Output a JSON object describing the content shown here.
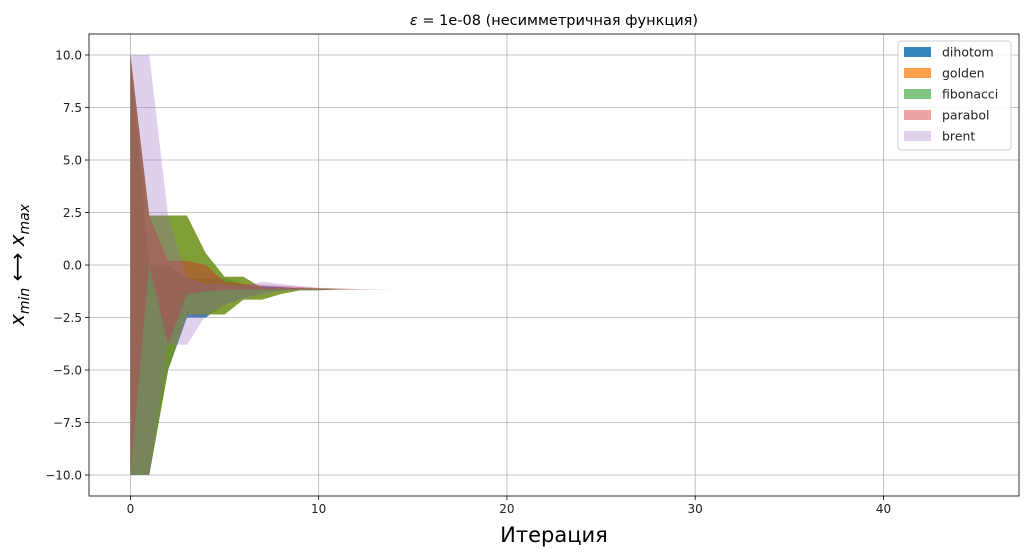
{
  "chart_data": {
    "type": "area",
    "title_symbol": "ε",
    "title_rest": " = 1e-08 (несимметричная функция)",
    "xlabel": "Итерация",
    "ylabel_x": "x",
    "ylabel_min": "min",
    "ylabel_arrow": " ⟷ ",
    "ylabel_max": "max",
    "xlim": [
      -2.2,
      47.2
    ],
    "ylim": [
      -11.0,
      11.0
    ],
    "xticks": [
      0,
      10,
      20,
      30,
      40
    ],
    "yticks": [
      -10.0,
      -7.5,
      -5.0,
      -2.5,
      0.0,
      2.5,
      5.0,
      7.5,
      10.0
    ],
    "ytick_labels": [
      "−10.0",
      "−7.5",
      "−5.0",
      "−2.5",
      "0.0",
      "2.5",
      "5.0",
      "7.5",
      "10.0"
    ],
    "grid": true,
    "legend_position": "top-right",
    "series": [
      {
        "name": "dihotom",
        "color": "#1f77b4",
        "opacity": 0.9,
        "x": [
          0,
          1,
          2,
          3,
          4,
          5,
          6,
          7,
          8,
          9,
          10,
          11,
          12,
          13,
          14,
          15,
          16,
          17,
          18,
          19,
          20
        ],
        "lower": [
          -10,
          -10,
          -5,
          -2.5,
          -2.5,
          -1.875,
          -1.563,
          -1.328,
          -1.211,
          -1.172,
          -1.162,
          -1.157,
          -1.155,
          -1.155,
          -1.155,
          -1.155,
          -1.155,
          -1.155,
          -1.155,
          -1.155,
          -1.155
        ],
        "upper": [
          10,
          0,
          0,
          -0.625,
          -0.625,
          -0.625,
          -0.938,
          -1.016,
          -1.055,
          -1.113,
          -1.143,
          -1.15,
          -1.153,
          -1.154,
          -1.155,
          -1.155,
          -1.155,
          -1.155,
          -1.155,
          -1.155,
          -1.155
        ]
      },
      {
        "name": "golden",
        "color": "#ff7f0e",
        "opacity": 0.75,
        "x": [
          0,
          1,
          2,
          3,
          4,
          5,
          6,
          7,
          8,
          9,
          10,
          11,
          12,
          13,
          14,
          15,
          16,
          17,
          18,
          19,
          20,
          21,
          22,
          23,
          24,
          25,
          26
        ],
        "lower": [
          -10,
          -10,
          -5.0,
          -2.36,
          -2.36,
          -2.36,
          -1.65,
          -1.65,
          -1.38,
          -1.21,
          -1.21,
          -1.17,
          -1.16,
          -1.156,
          -1.155,
          -1.155,
          -1.155,
          -1.155,
          -1.155,
          -1.155,
          -1.155,
          -1.155,
          -1.155,
          -1.155,
          -1.155,
          -1.155,
          -1.155
        ],
        "upper": [
          10,
          2.36,
          2.36,
          2.36,
          0.56,
          -0.56,
          -0.56,
          -1.1,
          -1.1,
          -1.1,
          -1.12,
          -1.14,
          -1.15,
          -1.152,
          -1.154,
          -1.155,
          -1.155,
          -1.155,
          -1.155,
          -1.155,
          -1.155,
          -1.155,
          -1.155,
          -1.155,
          -1.155,
          -1.155,
          -1.155
        ]
      },
      {
        "name": "fibonacci",
        "color": "#2ca02c",
        "opacity": 0.6,
        "x": [
          0,
          1,
          2,
          3,
          4,
          5,
          6,
          7,
          8,
          9,
          10,
          11,
          12,
          13,
          14,
          15,
          16,
          17,
          18,
          19,
          20,
          21,
          22,
          23,
          24,
          25,
          26,
          27,
          28,
          29,
          30
        ],
        "lower": [
          -10,
          -10,
          -5.0,
          -2.36,
          -2.36,
          -2.36,
          -1.65,
          -1.65,
          -1.38,
          -1.21,
          -1.21,
          -1.17,
          -1.16,
          -1.156,
          -1.155,
          -1.155,
          -1.155,
          -1.155,
          -1.155,
          -1.155,
          -1.155,
          -1.155,
          -1.155,
          -1.155,
          -1.155,
          -1.155,
          -1.155,
          -1.155,
          -1.155,
          -1.155,
          -1.155
        ],
        "upper": [
          10,
          2.36,
          2.36,
          2.36,
          0.56,
          -0.56,
          -0.56,
          -1.1,
          -1.1,
          -1.1,
          -1.12,
          -1.14,
          -1.15,
          -1.152,
          -1.154,
          -1.155,
          -1.155,
          -1.155,
          -1.155,
          -1.155,
          -1.155,
          -1.155,
          -1.155,
          -1.155,
          -1.155,
          -1.155,
          -1.155,
          -1.155,
          -1.155,
          -1.155,
          -1.155
        ]
      },
      {
        "name": "parabol",
        "color": "#d62728",
        "opacity": 0.42,
        "x": [
          0,
          1,
          2,
          3,
          4,
          5,
          6,
          7,
          8,
          9,
          10,
          11,
          12,
          13,
          14,
          15,
          16,
          17,
          18,
          19,
          20,
          21,
          22,
          23
        ],
        "lower": [
          -10,
          0,
          -3.8,
          -1.4,
          -1.25,
          -1.2,
          -1.18,
          -1.17,
          -1.16,
          -1.158,
          -1.157,
          -1.156,
          -1.156,
          -1.155,
          -1.155,
          -1.155,
          -1.155,
          -1.155,
          -1.155,
          -1.155,
          -1.155,
          -1.155,
          -1.155,
          -1.155
        ],
        "upper": [
          10,
          2.36,
          0.2,
          0.2,
          0.0,
          -0.8,
          -0.9,
          -0.95,
          -1.0,
          -1.05,
          -1.1,
          -1.12,
          -1.14,
          -1.15,
          -1.152,
          -1.154,
          -1.155,
          -1.155,
          -1.155,
          -1.155,
          -1.155,
          -1.155,
          -1.155,
          -1.155
        ]
      },
      {
        "name": "brent",
        "color": "#9467bd",
        "opacity": 0.3,
        "x": [
          0,
          1,
          2,
          3,
          4,
          5,
          6,
          7,
          8,
          9,
          10,
          11,
          12,
          13,
          14,
          15,
          16,
          17,
          18,
          19,
          20,
          21,
          22
        ],
        "lower": [
          -10,
          -10,
          -3.8,
          -3.8,
          -2.4,
          -1.9,
          -1.6,
          -1.4,
          -1.25,
          -1.2,
          -1.18,
          -1.17,
          -1.16,
          -1.157,
          -1.156,
          -1.155,
          -1.155,
          -1.155,
          -1.155,
          -1.155,
          -1.155,
          -1.155,
          -1.155
        ],
        "upper": [
          10,
          10,
          2.36,
          -0.6,
          -0.9,
          -0.9,
          -1.0,
          -0.8,
          -0.9,
          -1.0,
          -1.08,
          -1.12,
          -1.14,
          -1.15,
          -1.152,
          -1.154,
          -1.155,
          -1.155,
          -1.155,
          -1.155,
          -1.155,
          -1.155,
          -1.155
        ]
      }
    ]
  }
}
